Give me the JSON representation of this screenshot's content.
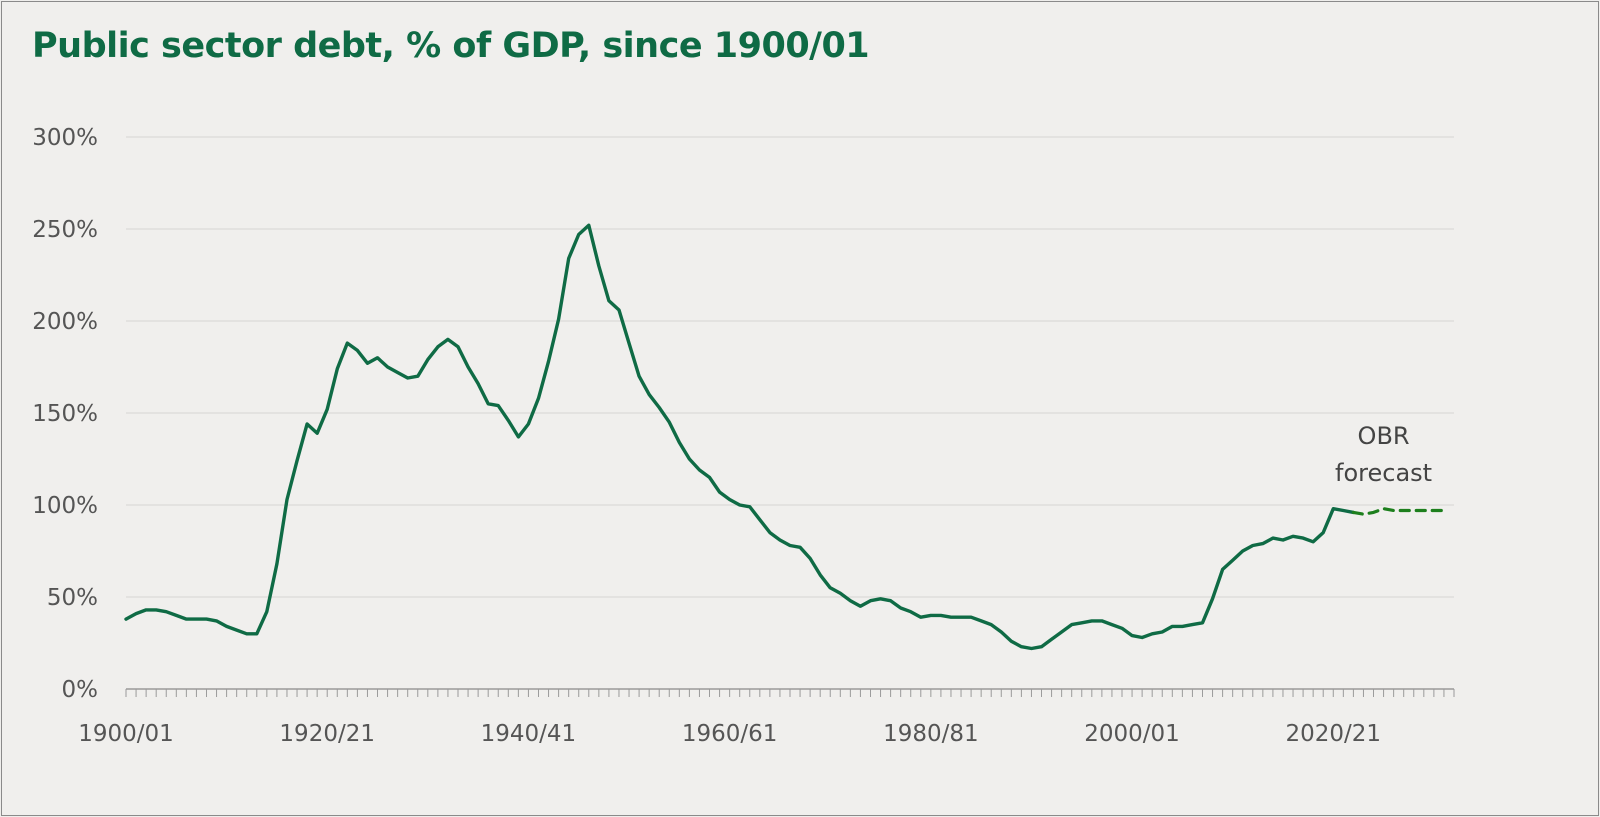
{
  "chart_data": {
    "type": "line",
    "title": "Public sector debt, % of GDP, since 1900/01",
    "xlabel": "",
    "ylabel": "",
    "ylim": [
      0,
      300
    ],
    "yticks": [
      "0%",
      "50%",
      "100%",
      "150%",
      "200%",
      "250%",
      "300%"
    ],
    "xticks": [
      "1900/01",
      "1920/21",
      "1940/41",
      "1960/61",
      "1980/81",
      "2000/01",
      "2020/21"
    ],
    "grid": true,
    "annotations": [
      {
        "text_lines": [
          "OBR",
          "forecast"
        ]
      }
    ],
    "x_start_year": 1900,
    "series": [
      {
        "name": "Public sector debt",
        "style": "solid",
        "color": "#0f6b45",
        "values": [
          38,
          41,
          43,
          43,
          42,
          40,
          38,
          38,
          38,
          37,
          34,
          32,
          30,
          30,
          42,
          68,
          103,
          124,
          144,
          139,
          152,
          174,
          188,
          184,
          177,
          180,
          175,
          172,
          169,
          170,
          179,
          186,
          190,
          186,
          175,
          166,
          155,
          154,
          146,
          137,
          144,
          158,
          178,
          201,
          234,
          247,
          252,
          230,
          211,
          206,
          188,
          170,
          160,
          153,
          145,
          134,
          125,
          119,
          115,
          107,
          103,
          100,
          99,
          92,
          85,
          81,
          78,
          77,
          71,
          62,
          55,
          52,
          48,
          45,
          48,
          49,
          48,
          44,
          42,
          39,
          40,
          40,
          39,
          39,
          39,
          37,
          35,
          31,
          26,
          23,
          22,
          23,
          27,
          31,
          35,
          36,
          37,
          37,
          35,
          33,
          29,
          28,
          30,
          31,
          34,
          34,
          35,
          36,
          49,
          65,
          70,
          75,
          78,
          79,
          82,
          81,
          83,
          82,
          80,
          85,
          98,
          97,
          96
        ]
      },
      {
        "name": "OBR forecast",
        "style": "dashed",
        "color": "#1d7f1d",
        "x_offset": 122,
        "values": [
          96,
          95,
          96,
          98,
          97,
          97,
          97,
          97,
          97,
          97
        ]
      }
    ]
  }
}
